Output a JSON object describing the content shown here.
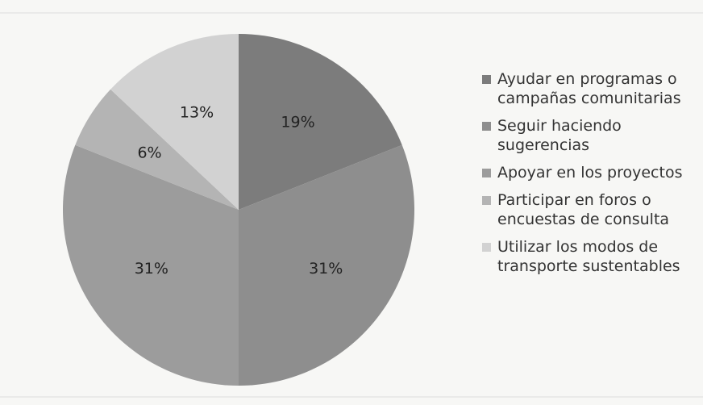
{
  "chart_data": {
    "type": "pie",
    "categories": [
      "Ayudar en programas o campañas comunitarias",
      "Seguir haciendo sugerencias",
      "Apoyar en los proyectos",
      "Participar en foros o encuestas de consulta",
      "Utilizar los modos de transporte sustentables"
    ],
    "values": [
      19,
      31,
      31,
      6,
      13
    ],
    "value_labels": [
      "19%",
      "31%",
      "31%",
      "6%",
      "13%"
    ],
    "colors": [
      "#7c7c7c",
      "#8e8e8e",
      "#9c9c9c",
      "#b4b4b4",
      "#d2d2d2"
    ]
  }
}
